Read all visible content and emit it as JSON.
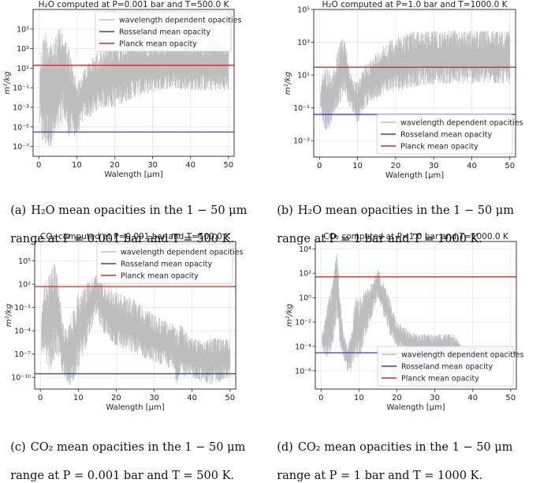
{
  "colors": {
    "wavelength": "#bdbdbd",
    "rosseland": "#3b3bd0",
    "planck": "#d42a2a",
    "grid": "#e6e6e6"
  },
  "legend_labels": {
    "wavelength": "wavelength dependent opacities",
    "rosseland": "Rosseland mean opacity",
    "planck": "Planck mean opacity"
  },
  "captions": [
    {
      "label": "(a)",
      "line1": "H₂O mean opacities in the 1 − 50 μm",
      "line2": "range at P = 0.001 bar and T = 500 K."
    },
    {
      "label": "(b)",
      "line1": "H₂O mean opacities in the 1 − 50 μm",
      "line2": "range at P = 1 bar and T = 1000 K."
    },
    {
      "label": "(c)",
      "line1": "CO₂ mean opacities in the 1 − 50 μm",
      "line2": "range at P = 0.001 bar and T = 500 K."
    },
    {
      "label": "(d)",
      "line1": "CO₂ mean opacities in the 1 − 50 μm",
      "line2": "range at P = 1 bar and T = 1000 K."
    }
  ],
  "chart_data": [
    {
      "type": "line",
      "molecule": "H2O",
      "title": "H₂O computed at P=0.001 bar and T=500.0 K",
      "xlabel": "Walength [μm]",
      "ylabel": "m²/kg",
      "y_scale": "log",
      "grid": true,
      "legend_position": "top-right",
      "xlim": [
        -1.5,
        51.5
      ],
      "ylim_log10": [
        -8,
        7
      ],
      "x_ticks": [
        0,
        10,
        20,
        30,
        40,
        50
      ],
      "x_tick_labels": [
        "0",
        "10",
        "20",
        "30",
        "40",
        "50"
      ],
      "y_ticks_log10": [
        5,
        3,
        1,
        -1,
        -3,
        -5,
        -7
      ],
      "y_tick_labels": [
        "10⁵",
        "10³",
        "10¹",
        "10⁻¹",
        "10⁻³",
        "10⁻⁵",
        "10⁻⁷"
      ],
      "rosseland_mean": 3e-06,
      "planck_mean": 20,
      "series": [
        {
          "name": "wavelength dependent opacities",
          "x": [
            0.3,
            1,
            2,
            3,
            4,
            5,
            6,
            6.5,
            7,
            8,
            9,
            10,
            11,
            12,
            14,
            16,
            18,
            20,
            25,
            30,
            35,
            40,
            45,
            50
          ],
          "upper": [
            100.0,
            10000.0,
            100000.0,
            10000.0,
            3000.0,
            100000.0,
            100000.0,
            100000.0,
            10000.0,
            1000.0,
            10,
            0.5,
            1,
            10,
            100.0,
            1000.0,
            1000.0,
            5000.0,
            10000.0,
            10000.0,
            10000.0,
            10000.0,
            10000.0,
            10000.0
          ],
          "lower": [
            1e-05,
            1e-07,
            1e-07,
            1e-07,
            3e-07,
            1e-06,
            1e-05,
            0.0001,
            1e-05,
            1e-06,
            1e-06,
            1e-06,
            1e-05,
            0.0001,
            0.0001,
            0.001,
            0.001,
            0.001,
            0.01,
            0.03,
            0.1,
            0.05,
            0.05,
            0.05
          ]
        }
      ]
    },
    {
      "type": "line",
      "molecule": "H2O",
      "title": "H₂O computed at P=1.0 bar and T=1000.0 K",
      "xlabel": "Walength [μm]",
      "ylabel": "m²/kg",
      "y_scale": "log",
      "grid": true,
      "legend_position": "bottom-right",
      "xlim": [
        -1.5,
        51.5
      ],
      "ylim_log10": [
        -4,
        5
      ],
      "x_ticks": [
        0,
        10,
        20,
        30,
        40,
        50
      ],
      "x_tick_labels": [
        "0",
        "10",
        "20",
        "30",
        "40",
        "50"
      ],
      "y_ticks_log10": [
        5,
        3,
        1,
        -1,
        -3
      ],
      "y_tick_labels": [
        "10⁵",
        "10³",
        "10¹",
        "10⁻¹",
        "10⁻³"
      ],
      "rosseland_mean": 0.04,
      "planck_mean": 30,
      "series": [
        {
          "name": "wavelength dependent opacities",
          "x": [
            0.3,
            1,
            2,
            3,
            4,
            5,
            6,
            6.5,
            7,
            8,
            9,
            10,
            11,
            12,
            14,
            16,
            18,
            20,
            25,
            30,
            35,
            40,
            45,
            50
          ],
          "upper": [
            1,
            20,
            50,
            10,
            30,
            500.0,
            2000.0,
            2000.0,
            500.0,
            20,
            5,
            3,
            10,
            50,
            100.0,
            500.0,
            1000.0,
            2000.0,
            5000.0,
            5000.0,
            5000.0,
            5000.0,
            5000.0,
            5000.0
          ],
          "lower": [
            0.05,
            0.01,
            0.002,
            0.01,
            0.05,
            0.1,
            0.5,
            1,
            0.5,
            0.1,
            0.05,
            0.01,
            0.05,
            0.1,
            0.3,
            0.5,
            1,
            1,
            2,
            3,
            3,
            3,
            3,
            3
          ]
        }
      ]
    },
    {
      "type": "line",
      "molecule": "CO2",
      "title": "CO₂ computed at P=0.001 bar and T=500.0 K",
      "xlabel": "Walength [μm]",
      "ylabel": "m²/kg",
      "y_scale": "log",
      "grid": true,
      "legend_position": "top-right",
      "xlim": [
        -1.5,
        51.5
      ],
      "ylim_log10": [
        -11.5,
        7.5
      ],
      "x_ticks": [
        0,
        10,
        20,
        30,
        40,
        50
      ],
      "x_tick_labels": [
        "0",
        "10",
        "20",
        "30",
        "40",
        "50"
      ],
      "y_ticks_log10": [
        5,
        2,
        -1,
        -4,
        -7,
        -10
      ],
      "y_tick_labels": [
        "10⁵",
        "10²",
        "10⁻¹",
        "10⁻⁴",
        "10⁻⁷",
        "10⁻¹⁰"
      ],
      "rosseland_mean": 3e-10,
      "planck_mean": 50,
      "series": [
        {
          "name": "wavelength dependent opacities",
          "x": [
            0.3,
            1,
            2,
            3,
            4,
            5,
            6,
            7,
            8,
            9,
            10,
            12,
            14,
            15,
            16,
            18,
            20,
            25,
            30,
            35,
            36,
            37,
            38,
            40,
            45,
            50
          ],
          "upper": [
            0.01,
            100.0,
            1000.0,
            10000.0,
            100000.0,
            10,
            0.001,
            0.0001,
            0.01,
            0.1,
            10,
            100,
            1000.0,
            2000.0,
            1000.0,
            100,
            10,
            1,
            0.01,
            0.001,
            0.0001,
            0.001,
            0.0001,
            1e-05,
            1e-05,
            1e-05
          ],
          "lower": [
            1e-07,
            1e-08,
            1e-09,
            1e-09,
            1e-07,
            1e-08,
            1e-10,
            1e-11,
            1e-11,
            1e-10,
            1e-09,
            1e-06,
            0.001,
            0.01,
            0.0001,
            1e-05,
            1e-06,
            1e-07,
            1e-08,
            1e-09,
            1e-11,
            1e-09,
            1e-10,
            1e-10,
            1e-11,
            1e-10
          ]
        }
      ]
    },
    {
      "type": "line",
      "molecule": "CO2",
      "title": "CO₂ computed at P=1.0 bar and T=1000.0 K",
      "xlabel": "Walength [μm]",
      "ylabel": "m²/kg",
      "y_scale": "log",
      "grid": true,
      "legend_position": "bottom-right",
      "xlim": [
        -1.5,
        51.5
      ],
      "ylim_log10": [
        -7.5,
        4.6
      ],
      "x_ticks": [
        0,
        10,
        20,
        30,
        40,
        50
      ],
      "x_tick_labels": [
        "0",
        "10",
        "20",
        "30",
        "40",
        "50"
      ],
      "y_ticks_log10": [
        4,
        2,
        0,
        -2,
        -4,
        -6
      ],
      "y_tick_labels": [
        "10⁴",
        "10²",
        "10⁰",
        "10⁻²",
        "10⁻⁴",
        "10⁻⁶"
      ],
      "rosseland_mean": 3e-05,
      "planck_mean": 50,
      "series": [
        {
          "name": "wavelength dependent opacities",
          "x": [
            0.3,
            1,
            2,
            3,
            4,
            4.5,
            5,
            6,
            7,
            8,
            9,
            10,
            11,
            12,
            14,
            15,
            16,
            18,
            20,
            25,
            30,
            35,
            37,
            40,
            45,
            50
          ],
          "upper": [
            0.001,
            0.01,
            1,
            10,
            10000.0,
            1000.0,
            1,
            0.001,
            0.0001,
            0.001,
            1,
            1,
            2,
            5,
            50,
            200,
            50,
            1,
            0.01,
            0.001,
            0.001,
            0.001,
            0.0001,
            0.0001,
            0.0001,
            0.0001
          ],
          "lower": [
            0.0001,
            1e-05,
            1e-05,
            0.0001,
            0.01,
            0.001,
            0.0001,
            1e-05,
            1e-06,
            1e-06,
            1e-05,
            1e-05,
            0.0001,
            0.001,
            0.1,
            1,
            0.1,
            0.001,
            0.0001,
            1e-05,
            1e-05,
            1e-05,
            1e-05,
            1e-05,
            1e-05,
            1e-05
          ]
        }
      ]
    }
  ]
}
